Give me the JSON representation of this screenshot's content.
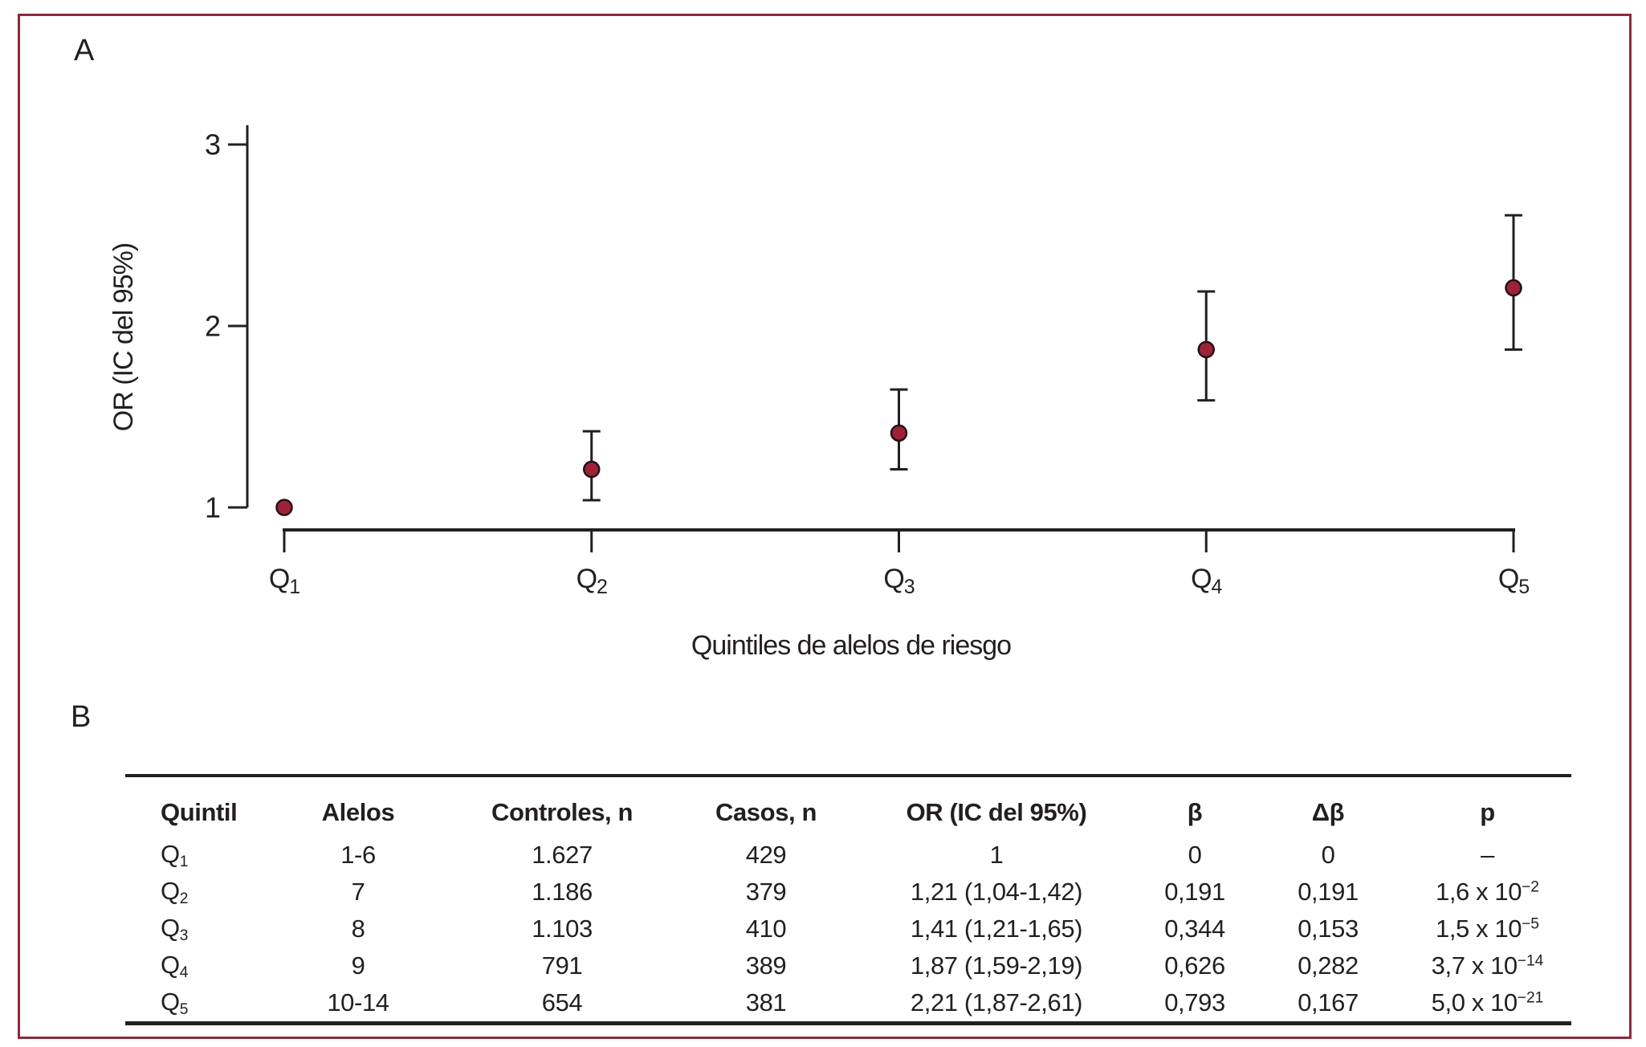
{
  "figure": {
    "panel_a_label": "A",
    "panel_b_label": "B"
  },
  "colors": {
    "border": "#8B2A40",
    "ink": "#231F20",
    "marker_fill": "#9E2236",
    "marker_stroke": "#231018"
  },
  "chart_data": [
    {
      "type": "scatter",
      "title": "",
      "xlabel": "Quintiles de alelos de riesgo",
      "ylabel": "OR (IC del 95%)",
      "yticks": [
        1,
        2,
        3
      ],
      "ylim": [
        1,
        3.1
      ],
      "grid": false,
      "legend": "none",
      "categories": [
        {
          "base": "Q",
          "sub": "1"
        },
        {
          "base": "Q",
          "sub": "2"
        },
        {
          "base": "Q",
          "sub": "3"
        },
        {
          "base": "Q",
          "sub": "4"
        },
        {
          "base": "Q",
          "sub": "5"
        }
      ],
      "series": [
        {
          "name": "OR",
          "values": [
            1.0,
            1.21,
            1.41,
            1.87,
            2.21
          ],
          "ci_low": [
            null,
            1.04,
            1.21,
            1.59,
            1.87
          ],
          "ci_high": [
            null,
            1.42,
            1.65,
            2.19,
            2.61
          ]
        }
      ]
    },
    {
      "type": "table",
      "columns": [
        {
          "key": "quintil",
          "label": "Quintil"
        },
        {
          "key": "alelos",
          "label": "Alelos"
        },
        {
          "key": "controles",
          "label": "Controles, n"
        },
        {
          "key": "casos",
          "label": "Casos, n"
        },
        {
          "key": "or",
          "label": "OR (IC del 95%)"
        },
        {
          "key": "beta",
          "label": "β"
        },
        {
          "key": "delta_beta",
          "label": "Δβ"
        },
        {
          "key": "p",
          "label": "p"
        }
      ],
      "rows": [
        {
          "quintil": {
            "base": "Q",
            "sub": "1"
          },
          "alelos": "1-6",
          "controles": "1.627",
          "casos": "429",
          "or": "1",
          "beta": "0",
          "delta_beta": "0",
          "p": {
            "base": "–",
            "exp": ""
          }
        },
        {
          "quintil": {
            "base": "Q",
            "sub": "2"
          },
          "alelos": "7",
          "controles": "1.186",
          "casos": "379",
          "or": "1,21 (1,04-1,42)",
          "beta": "0,191",
          "delta_beta": "0,191",
          "p": {
            "base": "1,6 x 10",
            "exp": "−2"
          }
        },
        {
          "quintil": {
            "base": "Q",
            "sub": "3"
          },
          "alelos": "8",
          "controles": "1.103",
          "casos": "410",
          "or": "1,41 (1,21-1,65)",
          "beta": "0,344",
          "delta_beta": "0,153",
          "p": {
            "base": "1,5 x 10",
            "exp": "−5"
          }
        },
        {
          "quintil": {
            "base": "Q",
            "sub": "4"
          },
          "alelos": "9",
          "controles": "791",
          "casos": "389",
          "or": "1,87 (1,59-2,19)",
          "beta": "0,626",
          "delta_beta": "0,282",
          "p": {
            "base": "3,7 x 10",
            "exp": "−14"
          }
        },
        {
          "quintil": {
            "base": "Q",
            "sub": "5"
          },
          "alelos": "10-14",
          "controles": "654",
          "casos": "381",
          "or": "2,21 (1,87-2,61)",
          "beta": "0,793",
          "delta_beta": "0,167",
          "p": {
            "base": "5,0 x 10",
            "exp": "−21"
          }
        }
      ]
    }
  ]
}
